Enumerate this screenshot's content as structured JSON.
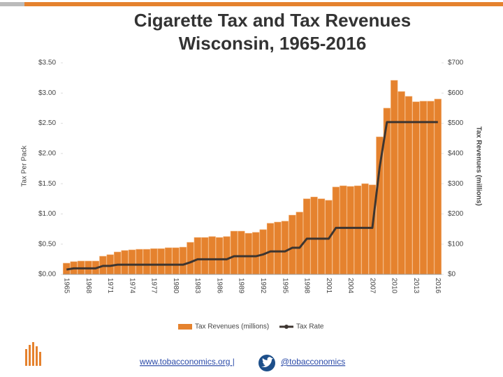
{
  "chart_data": {
    "type": "bar-line",
    "title": "Cigarette Tax and Tax Revenues",
    "subtitle": "Wisconsin, 1965-2016",
    "y_label": "Tax Per Pack",
    "y2_label": "Tax Revenues (millions)",
    "categories": [
      "1965",
      null,
      null,
      "1968",
      null,
      null,
      "1971",
      null,
      null,
      "1974",
      null,
      null,
      "1977",
      null,
      null,
      "1980",
      null,
      null,
      "1983",
      null,
      null,
      "1986",
      null,
      null,
      "1989",
      null,
      null,
      "1992",
      null,
      null,
      "1995",
      null,
      null,
      "1998",
      null,
      null,
      "2001",
      null,
      null,
      "2004",
      null,
      null,
      "2007",
      null,
      null,
      "2010",
      null,
      null,
      "2013",
      null,
      null,
      "2016"
    ],
    "series": [
      {
        "name": "Tax Revenues (millions)",
        "type": "bar",
        "axis": "y2",
        "color": "#e5822e",
        "values": [
          37,
          42,
          44,
          44,
          44,
          60,
          65,
          74,
          79,
          81,
          83,
          83,
          85,
          85,
          88,
          88,
          90,
          106,
          122,
          122,
          125,
          122,
          125,
          143,
          143,
          136,
          139,
          148,
          169,
          173,
          176,
          196,
          206,
          250,
          256,
          250,
          245,
          289,
          293,
          291,
          293,
          300,
          296,
          455,
          550,
          642,
          605,
          589,
          571,
          573,
          573,
          580
        ]
      },
      {
        "name": "Tax Rate",
        "type": "line",
        "color": "#3d3530",
        "values": [
          0.08,
          0.1,
          0.1,
          0.1,
          0.1,
          0.14,
          0.14,
          0.16,
          0.16,
          0.16,
          0.16,
          0.16,
          0.16,
          0.16,
          0.16,
          0.16,
          0.16,
          0.2,
          0.25,
          0.25,
          0.25,
          0.25,
          0.25,
          0.3,
          0.3,
          0.3,
          0.3,
          0.33,
          0.38,
          0.38,
          0.38,
          0.44,
          0.44,
          0.59,
          0.59,
          0.59,
          0.59,
          0.77,
          0.77,
          0.77,
          0.77,
          0.77,
          0.77,
          1.77,
          2.52,
          2.52,
          2.52,
          2.52,
          2.52,
          2.52,
          2.52,
          2.52
        ]
      }
    ],
    "ylim": [
      0,
      3.5
    ],
    "yticks": [
      {
        "value": 0,
        "label": "$0.00"
      },
      {
        "value": 0.5,
        "label": "$0.50"
      },
      {
        "value": 1,
        "label": "$1.00"
      },
      {
        "value": 1.5,
        "label": "$1.50"
      },
      {
        "value": 2,
        "label": "$2.00"
      },
      {
        "value": 2.5,
        "label": "$2.50"
      },
      {
        "value": 3,
        "label": "$3.00"
      },
      {
        "value": 3.5,
        "label": "$3.50"
      }
    ],
    "y2lim": [
      0,
      700
    ],
    "y2ticks": [
      {
        "value": 0,
        "label": "$0"
      },
      {
        "value": 100,
        "label": "$100"
      },
      {
        "value": 200,
        "label": "$200"
      },
      {
        "value": 300,
        "label": "$300"
      },
      {
        "value": 400,
        "label": "$400"
      },
      {
        "value": 500,
        "label": "$500"
      },
      {
        "value": 600,
        "label": "$600"
      },
      {
        "value": 700,
        "label": "$700"
      }
    ],
    "legend": "bottom"
  },
  "footer": {
    "link": "www.tobacconomics.org |",
    "handle": "@tobacconomics"
  }
}
